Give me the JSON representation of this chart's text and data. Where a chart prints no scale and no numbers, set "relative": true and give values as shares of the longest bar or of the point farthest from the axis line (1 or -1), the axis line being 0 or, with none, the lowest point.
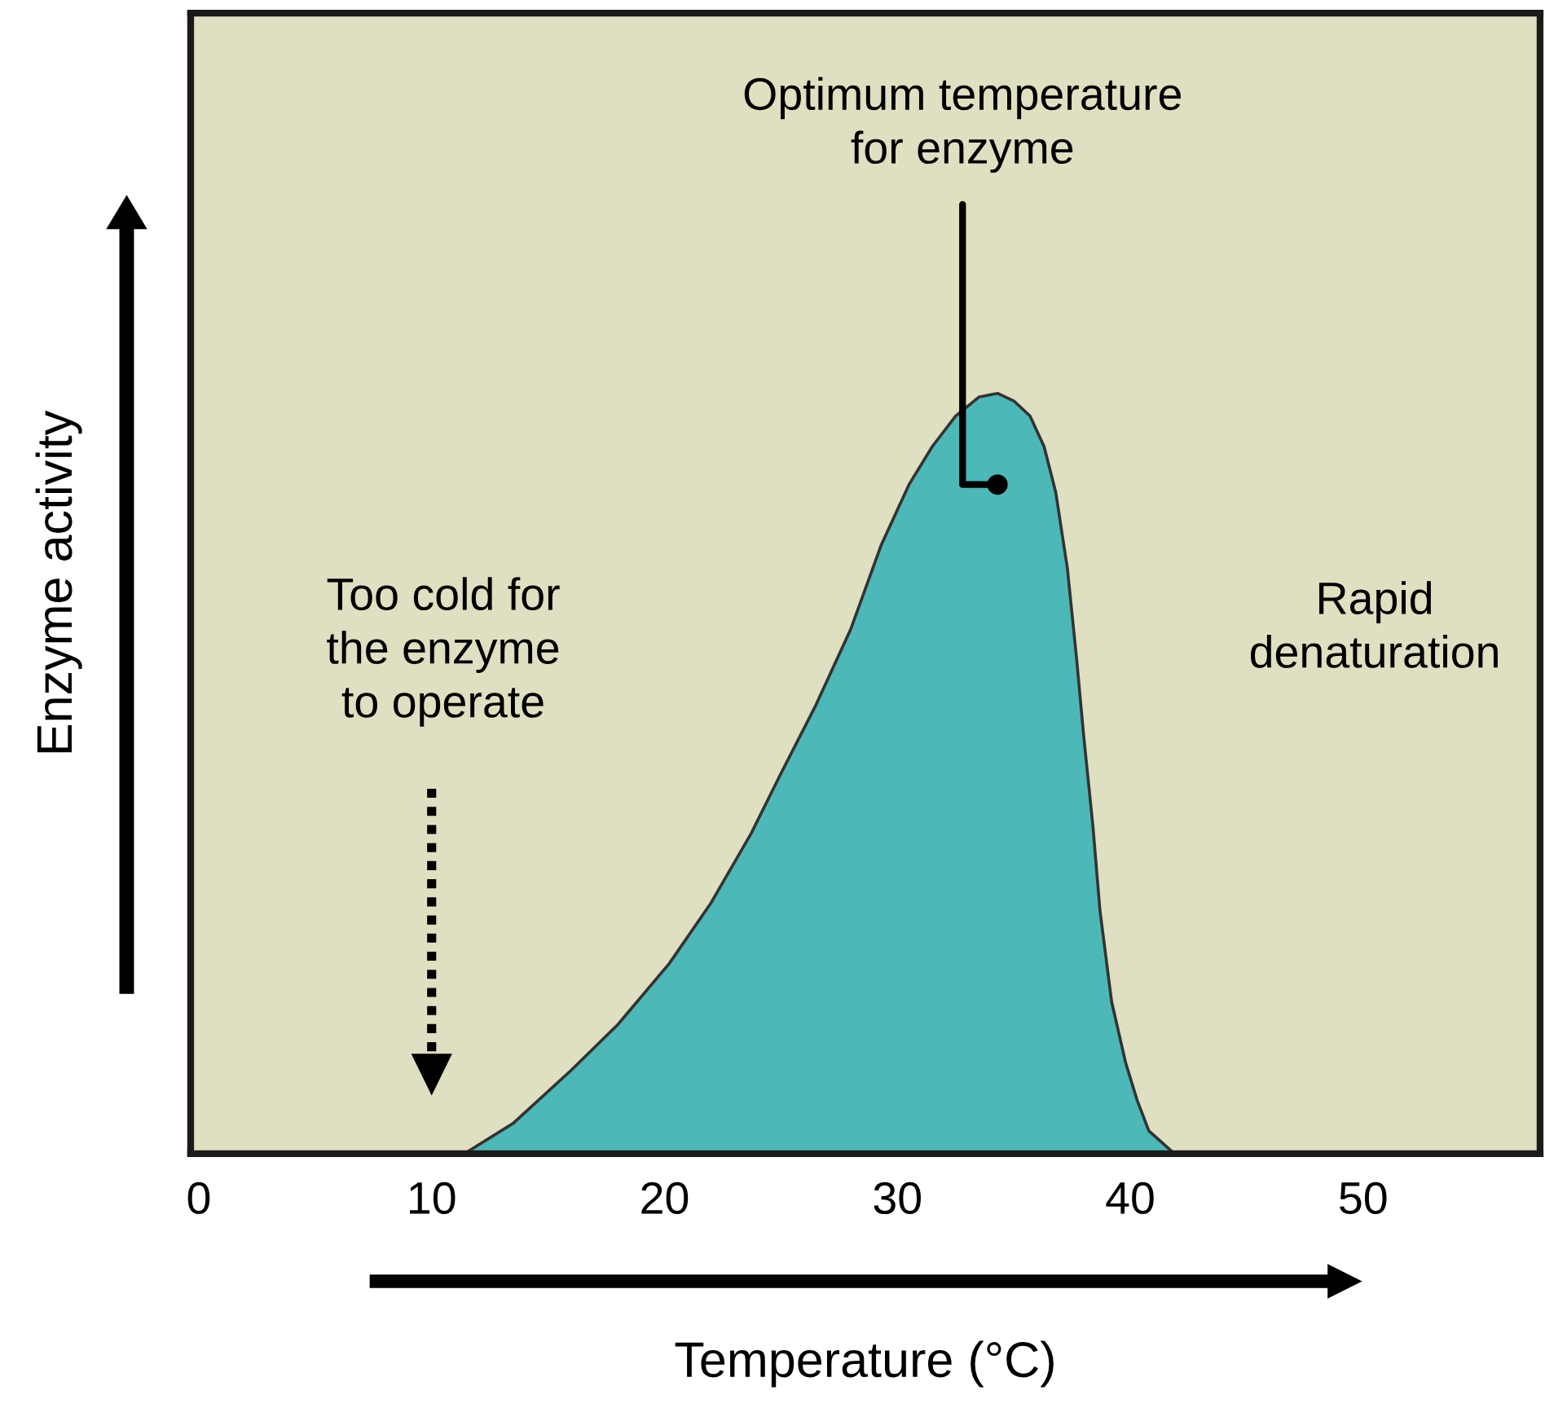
{
  "chart_data": {
    "type": "area",
    "relative": true,
    "xlabel": "Temperature (°C)",
    "ylabel": "Enzyme activity",
    "x": [
      11.4,
      13.5,
      16.0,
      18.0,
      20.2,
      22.0,
      23.7,
      25.0,
      26.5,
      28.0,
      29.3,
      30.5,
      31.5,
      32.5,
      33.5,
      34.3,
      35.0,
      35.7,
      36.3,
      36.8,
      37.3,
      37.7,
      38.0,
      38.4,
      38.7,
      39.2,
      39.8,
      40.3,
      40.8,
      41.9
    ],
    "values": [
      0,
      0.04,
      0.11,
      0.17,
      0.25,
      0.33,
      0.42,
      0.5,
      0.59,
      0.69,
      0.8,
      0.88,
      0.93,
      0.97,
      0.995,
      1.0,
      0.99,
      0.97,
      0.93,
      0.87,
      0.77,
      0.65,
      0.55,
      0.43,
      0.32,
      0.2,
      0.12,
      0.07,
      0.03,
      0
    ],
    "color": "#4db8b8",
    "xlim": [
      -0.35,
      57.6
    ],
    "xticks": [
      0,
      10,
      20,
      30,
      40,
      50
    ],
    "grid": false,
    "annotations": [
      {
        "text": "Optimum temperature\nfor enzyme",
        "x": 34.3,
        "y": 0.88
      },
      "Too cold for\nthe enzyme\nto operate",
      "Rapid\ndenaturation"
    ]
  }
}
